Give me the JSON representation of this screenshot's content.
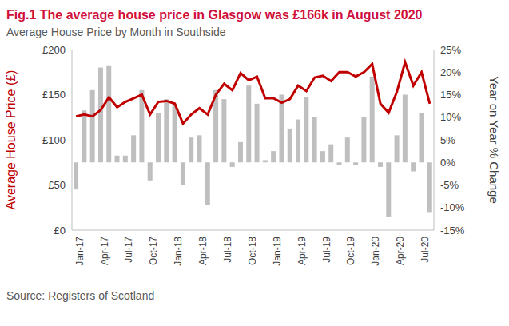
{
  "chart_data": {
    "type": "line",
    "title": "Fig.1 The average house price in Glasgow was £166k in August 2020",
    "subtitle": "Average House Price by Month  in Southside",
    "source": "Source: Registers of Scotland",
    "grid": false,
    "categories": [
      "Jan-17",
      null,
      null,
      "Apr-17",
      null,
      null,
      "Jul-17",
      null,
      null,
      "Oct-17",
      null,
      null,
      "Jan-18",
      null,
      null,
      "Apr-18",
      null,
      null,
      "Jul-18",
      null,
      null,
      "Oct-18",
      null,
      null,
      "Jan-19",
      null,
      null,
      "Apr-19",
      null,
      null,
      "Jul-19",
      null,
      null,
      "Oct-19",
      null,
      null,
      "Jan-20",
      null,
      null,
      "Apr-20",
      null,
      null,
      "Jul-20",
      null
    ],
    "series": [
      {
        "name": "Year on Year % Change",
        "type": "bar",
        "axis": "y2",
        "color": "#bfbfbf",
        "values": [
          -6,
          11.5,
          16,
          21,
          21.5,
          1.5,
          1.5,
          6,
          16,
          -4,
          11,
          14,
          13,
          -5,
          5.5,
          6,
          -9.5,
          16,
          14,
          -1,
          4.5,
          17,
          13,
          0.5,
          2.5,
          15,
          7.5,
          9.5,
          14.5,
          10,
          2.5,
          4,
          -0.5,
          5.5,
          -0.5,
          10,
          19,
          -1,
          -12,
          6,
          15,
          -2,
          11,
          -11
        ]
      },
      {
        "name": "Average House Price (£)",
        "type": "line",
        "color": "#c00000",
        "values": [
          126,
          128,
          126,
          133,
          147,
          136,
          142,
          146,
          150,
          128,
          142,
          143,
          140,
          118,
          128,
          135,
          128,
          150,
          162,
          155,
          174,
          166,
          170,
          146,
          146,
          141,
          145,
          160,
          154,
          169,
          171,
          165,
          175,
          175,
          170,
          175,
          184,
          140,
          130,
          153,
          186,
          160,
          175,
          140
        ]
      }
    ],
    "ylim": [
      0,
      200
    ],
    "yticks": [
      {
        "value": 0,
        "label": "£0"
      },
      {
        "value": 50,
        "label": "£50"
      },
      {
        "value": 100,
        "label": "£100"
      },
      {
        "value": 150,
        "label": "£150"
      },
      {
        "value": 200,
        "label": "£200"
      }
    ],
    "y2lim": [
      -15,
      25
    ],
    "y2ticks": [
      {
        "value": -15,
        "label": "-15%"
      },
      {
        "value": -10,
        "label": "-10%"
      },
      {
        "value": -5,
        "label": "-5%"
      },
      {
        "value": 0,
        "label": "0%"
      },
      {
        "value": 5,
        "label": "5%"
      },
      {
        "value": 10,
        "label": "10%"
      },
      {
        "value": 15,
        "label": "15%"
      },
      {
        "value": 20,
        "label": "20%"
      },
      {
        "value": 25,
        "label": "25%"
      }
    ]
  }
}
